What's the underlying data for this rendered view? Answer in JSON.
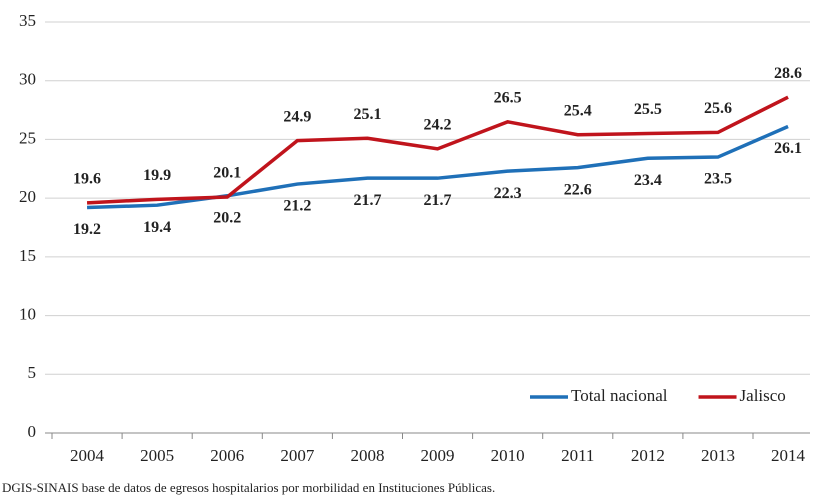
{
  "chart_data": {
    "type": "line",
    "categories": [
      "2004",
      "2005",
      "2006",
      "2007",
      "2008",
      "2009",
      "2010",
      "2011",
      "2012",
      "2013",
      "2014"
    ],
    "series": [
      {
        "name": "Total nacional",
        "color": "#1f70b8",
        "values": [
          19.2,
          19.4,
          20.2,
          21.2,
          21.7,
          21.7,
          22.3,
          22.6,
          23.4,
          23.5,
          26.1
        ]
      },
      {
        "name": "Jalisco",
        "color": "#c0141c",
        "values": [
          19.6,
          19.9,
          20.1,
          24.9,
          25.1,
          24.2,
          26.5,
          25.4,
          25.5,
          25.6,
          28.6
        ]
      }
    ],
    "ylim": [
      0,
      35
    ],
    "yticks": [
      0,
      5,
      10,
      15,
      20,
      25,
      30,
      35
    ],
    "grid": true,
    "legend": "lower right",
    "source": "DGIS-SINAIS base de datos de egresos hospitalarios por morbilidad en Instituciones Públicas."
  }
}
